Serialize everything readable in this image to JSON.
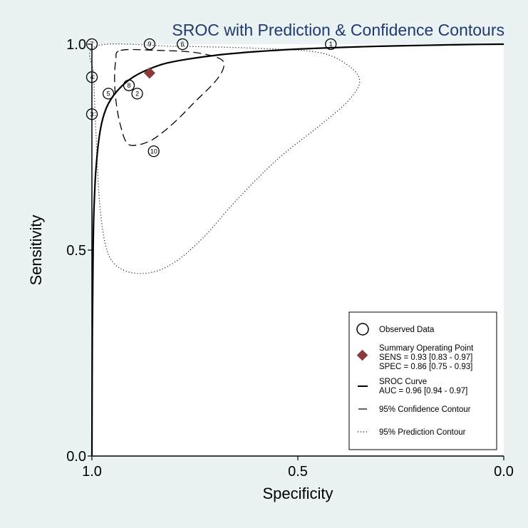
{
  "chart_data": {
    "type": "scatter",
    "title": "SROC with Prediction & Confidence Contours",
    "xlabel": "Specificity",
    "ylabel": "Sensitivity",
    "xlim": [
      1.0,
      0.0
    ],
    "ylim": [
      0.0,
      1.0
    ],
    "x_reversed": true,
    "xticks": [
      "1.0",
      "0.5",
      "0.0"
    ],
    "yticks": [
      "0.0",
      "0.5",
      "1.0"
    ],
    "grid": false,
    "legend_position": "bottom-right",
    "observed_data": [
      {
        "label": "1",
        "spec": 0.42,
        "sens": 1.0
      },
      {
        "label": "2",
        "spec": 0.89,
        "sens": 0.88
      },
      {
        "label": "3",
        "spec": 1.0,
        "sens": 0.83
      },
      {
        "label": "4",
        "spec": 1.0,
        "sens": 0.92
      },
      {
        "label": "5",
        "spec": 0.96,
        "sens": 0.88
      },
      {
        "label": "6",
        "spec": 0.78,
        "sens": 1.0
      },
      {
        "label": "7",
        "spec": 1.0,
        "sens": 1.0
      },
      {
        "label": "8",
        "spec": 0.91,
        "sens": 0.9
      },
      {
        "label": "9",
        "spec": 0.86,
        "sens": 1.0
      },
      {
        "label": "10",
        "spec": 0.85,
        "sens": 0.74
      }
    ],
    "summary_point": {
      "spec": 0.86,
      "sens": 0.93,
      "color": "#8b3a3a"
    },
    "sroc_curve": {
      "points": [
        [
          1.0,
          0.0
        ],
        [
          0.999,
          0.3
        ],
        [
          0.997,
          0.5
        ],
        [
          0.995,
          0.6
        ],
        [
          0.99,
          0.7
        ],
        [
          0.98,
          0.79
        ],
        [
          0.965,
          0.845
        ],
        [
          0.94,
          0.885
        ],
        [
          0.9,
          0.92
        ],
        [
          0.85,
          0.944
        ],
        [
          0.8,
          0.958
        ],
        [
          0.7,
          0.973
        ],
        [
          0.6,
          0.982
        ],
        [
          0.5,
          0.988
        ],
        [
          0.4,
          0.992
        ],
        [
          0.3,
          0.995
        ],
        [
          0.2,
          0.997
        ],
        [
          0.1,
          0.999
        ],
        [
          0.0,
          1.0
        ]
      ]
    },
    "confidence_contour": {
      "points": [
        [
          0.93,
          0.985
        ],
        [
          0.84,
          0.985
        ],
        [
          0.75,
          0.98
        ],
        [
          0.69,
          0.965
        ],
        [
          0.68,
          0.945
        ],
        [
          0.7,
          0.91
        ],
        [
          0.75,
          0.86
        ],
        [
          0.8,
          0.81
        ],
        [
          0.85,
          0.77
        ],
        [
          0.89,
          0.755
        ],
        [
          0.915,
          0.76
        ],
        [
          0.93,
          0.8
        ],
        [
          0.94,
          0.85
        ],
        [
          0.945,
          0.91
        ],
        [
          0.942,
          0.96
        ],
        [
          0.93,
          0.985
        ]
      ]
    },
    "prediction_contour": {
      "points": [
        [
          0.99,
          0.995
        ],
        [
          0.8,
          0.995
        ],
        [
          0.6,
          0.99
        ],
        [
          0.45,
          0.98
        ],
        [
          0.38,
          0.95
        ],
        [
          0.35,
          0.91
        ],
        [
          0.38,
          0.86
        ],
        [
          0.45,
          0.8
        ],
        [
          0.55,
          0.72
        ],
        [
          0.65,
          0.62
        ],
        [
          0.73,
          0.53
        ],
        [
          0.8,
          0.47
        ],
        [
          0.86,
          0.445
        ],
        [
          0.92,
          0.45
        ],
        [
          0.96,
          0.49
        ],
        [
          0.98,
          0.6
        ],
        [
          0.99,
          0.78
        ],
        [
          0.995,
          0.92
        ],
        [
          0.99,
          0.995
        ]
      ]
    },
    "legend": {
      "observed": "Observed Data",
      "summary_title": "Summary Operating Point",
      "summary_sens": "SENS = 0.93 [0.83 - 0.97]",
      "summary_spec": "SPEC = 0.86 [0.75 - 0.93]",
      "sroc_title": "SROC Curve",
      "sroc_auc": "AUC = 0.96 [0.94 - 0.97]",
      "confidence": "95% Confidence Contour",
      "prediction": "95% Prediction Contour"
    }
  }
}
